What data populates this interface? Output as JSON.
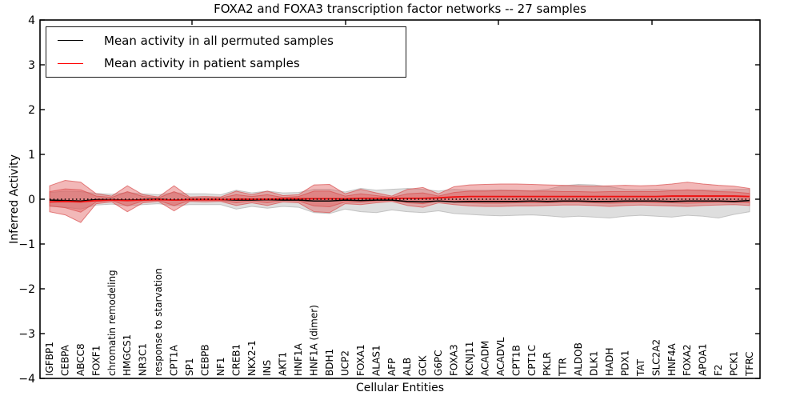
{
  "title": "FOXA2 and FOXA3 transcription factor networks -- 27 samples",
  "legend": {
    "items": [
      {
        "label": "Mean activity in all permuted samples",
        "color": "#000000"
      },
      {
        "label": "Mean activity in patient samples",
        "color": "#ff0000"
      }
    ]
  },
  "colors": {
    "permuted_band": "#bdbdbd",
    "patient_band": "#e05555",
    "patient_band_edge": "#d94f4f",
    "permuted_band_edge": "#b0b0b0",
    "permuted_line": "#000000",
    "patient_line": "#ee1111",
    "zero_line": "#000000",
    "axes": "#000000"
  },
  "chart_data": {
    "type": "line",
    "title": "FOXA2 and FOXA3 transcription factor networks -- 27 samples",
    "xlabel": "Cellular Entities",
    "ylabel": "Inferred Activity",
    "ylim": [
      -4,
      4
    ],
    "y_ticks": [
      4,
      3,
      2,
      1,
      0,
      -1,
      -2,
      -3,
      -4
    ],
    "y_tick_labels": [
      "4",
      "3",
      "2",
      "1",
      "0",
      "−1",
      "−2",
      "−3",
      "−4"
    ],
    "grid": false,
    "legend_position": "upper-left",
    "categories": [
      "IGFBP1",
      "CEBPA",
      "ABCC8",
      "FOXF1",
      "chromatin remodeling",
      "HMGCS1",
      "NR3C1",
      "response to starvation",
      "CPT1A",
      "SP1",
      "CEBPB",
      "NF1",
      "CREB1",
      "NKX2-1",
      "INS",
      "AKT1",
      "HNF1A",
      "HNF1A (dimer)",
      "BDH1",
      "UCP2",
      "FOXA1",
      "ALAS1",
      "AFP",
      "ALB",
      "GCK",
      "G6PC",
      "FOXA3",
      "KCNJ11",
      "ACADM",
      "ACADVL",
      "CPT1B",
      "CPT1C",
      "PKLR",
      "TTR",
      "ALDOB",
      "DLK1",
      "HADH",
      "PDX1",
      "TAT",
      "SLC2A2",
      "HNF4A",
      "FOXA2",
      "APOA1",
      "F2",
      "PCK1",
      "TFRC"
    ],
    "series": [
      {
        "name": "Mean activity in all permuted samples",
        "color": "#000000",
        "values": [
          -0.02,
          -0.03,
          -0.04,
          -0.01,
          -0.01,
          -0.02,
          -0.01,
          0,
          -0.02,
          -0.01,
          -0.01,
          -0.01,
          -0.02,
          -0.02,
          -0.01,
          -0.02,
          -0.02,
          -0.04,
          -0.04,
          -0.02,
          -0.03,
          -0.02,
          -0.02,
          -0.05,
          -0.06,
          -0.04,
          -0.06,
          -0.05,
          -0.05,
          -0.05,
          -0.05,
          -0.04,
          -0.05,
          -0.04,
          -0.04,
          -0.05,
          -0.05,
          -0.04,
          -0.04,
          -0.04,
          -0.05,
          -0.04,
          -0.04,
          -0.04,
          -0.05,
          -0.03
        ]
      },
      {
        "name": "Mean activity in patient samples",
        "color": "#ff0000",
        "values": [
          -0.06,
          -0.05,
          -0.06,
          -0.03,
          -0.02,
          -0.03,
          -0.02,
          -0.01,
          -0.02,
          -0.01,
          -0.01,
          -0.01,
          0,
          0,
          0,
          0.01,
          0.01,
          0.01,
          0.01,
          0.01,
          0.02,
          0.02,
          0.02,
          0.02,
          0.02,
          0.03,
          0.05,
          0.06,
          0.06,
          0.06,
          0.06,
          0.06,
          0.06,
          0.06,
          0.06,
          0.06,
          0.06,
          0.06,
          0.06,
          0.06,
          0.07,
          0.07,
          0.07,
          0.07,
          0.07,
          0.06
        ]
      }
    ],
    "bands": [
      {
        "name": "permuted-range",
        "color": "#bdbdbd",
        "opacity": 0.5,
        "edge": "#b0b0b0",
        "upper": [
          0.15,
          0.18,
          0.17,
          0.13,
          0.11,
          0.15,
          0.12,
          0.1,
          0.15,
          0.12,
          0.12,
          0.1,
          0.2,
          0.14,
          0.18,
          0.14,
          0.15,
          0.22,
          0.22,
          0.16,
          0.24,
          0.2,
          0.22,
          0.24,
          0.22,
          0.18,
          0.22,
          0.2,
          0.2,
          0.21,
          0.2,
          0.19,
          0.22,
          0.3,
          0.33,
          0.32,
          0.28,
          0.22,
          0.21,
          0.22,
          0.21,
          0.2,
          0.21,
          0.2,
          0.22,
          0.22
        ],
        "lower": [
          -0.16,
          -0.18,
          -0.22,
          -0.13,
          -0.11,
          -0.15,
          -0.12,
          -0.1,
          -0.15,
          -0.12,
          -0.12,
          -0.12,
          -0.22,
          -0.16,
          -0.2,
          -0.16,
          -0.18,
          -0.3,
          -0.32,
          -0.22,
          -0.28,
          -0.3,
          -0.24,
          -0.28,
          -0.3,
          -0.26,
          -0.32,
          -0.34,
          -0.36,
          -0.37,
          -0.36,
          -0.35,
          -0.37,
          -0.4,
          -0.38,
          -0.4,
          -0.42,
          -0.38,
          -0.36,
          -0.38,
          -0.4,
          -0.36,
          -0.38,
          -0.42,
          -0.34,
          -0.28
        ]
      },
      {
        "name": "patient-range-outer",
        "color": "#e05555",
        "opacity": 0.42,
        "edge": "#d94f4f",
        "upper": [
          0.3,
          0.42,
          0.38,
          0.12,
          0.07,
          0.3,
          0.1,
          0.05,
          0.3,
          0.05,
          0.06,
          0.05,
          0.18,
          0.1,
          0.18,
          0.08,
          0.1,
          0.32,
          0.33,
          0.12,
          0.22,
          0.14,
          0.07,
          0.22,
          0.26,
          0.12,
          0.28,
          0.32,
          0.33,
          0.34,
          0.34,
          0.33,
          0.32,
          0.31,
          0.3,
          0.29,
          0.3,
          0.31,
          0.3,
          0.31,
          0.34,
          0.38,
          0.34,
          0.31,
          0.29,
          0.24
        ],
        "lower": [
          -0.28,
          -0.35,
          -0.52,
          -0.1,
          -0.06,
          -0.28,
          -0.08,
          -0.05,
          -0.26,
          -0.05,
          -0.06,
          -0.05,
          -0.14,
          -0.08,
          -0.14,
          -0.06,
          -0.08,
          -0.28,
          -0.3,
          -0.1,
          -0.12,
          -0.08,
          -0.05,
          -0.14,
          -0.18,
          -0.08,
          -0.12,
          -0.15,
          -0.16,
          -0.16,
          -0.15,
          -0.15,
          -0.14,
          -0.13,
          -0.13,
          -0.14,
          -0.16,
          -0.14,
          -0.13,
          -0.14,
          -0.15,
          -0.16,
          -0.14,
          -0.13,
          -0.12,
          -0.14
        ]
      },
      {
        "name": "patient-range-inner",
        "color": "#e05555",
        "opacity": 0.42,
        "edge": "#d94f4f",
        "upper": [
          0.17,
          0.23,
          0.21,
          0.07,
          0.04,
          0.17,
          0.06,
          0.03,
          0.17,
          0.03,
          0.03,
          0.03,
          0.1,
          0.06,
          0.1,
          0.04,
          0.06,
          0.18,
          0.18,
          0.07,
          0.12,
          0.08,
          0.04,
          0.12,
          0.14,
          0.07,
          0.15,
          0.18,
          0.18,
          0.19,
          0.19,
          0.18,
          0.18,
          0.17,
          0.17,
          0.16,
          0.17,
          0.17,
          0.17,
          0.17,
          0.19,
          0.21,
          0.19,
          0.17,
          0.16,
          0.13
        ],
        "lower": [
          -0.15,
          -0.19,
          -0.29,
          -0.06,
          -0.03,
          -0.15,
          -0.04,
          -0.03,
          -0.14,
          -0.03,
          -0.03,
          -0.03,
          -0.08,
          -0.04,
          -0.08,
          -0.03,
          -0.04,
          -0.15,
          -0.17,
          -0.06,
          -0.07,
          -0.04,
          -0.03,
          -0.08,
          -0.1,
          -0.04,
          -0.07,
          -0.08,
          -0.09,
          -0.09,
          -0.08,
          -0.08,
          -0.08,
          -0.07,
          -0.07,
          -0.08,
          -0.09,
          -0.08,
          -0.07,
          -0.08,
          -0.08,
          -0.09,
          -0.08,
          -0.07,
          -0.07,
          -0.08
        ]
      }
    ],
    "zero_line": {
      "y": 0,
      "style": "dotted",
      "color": "#000000"
    }
  }
}
